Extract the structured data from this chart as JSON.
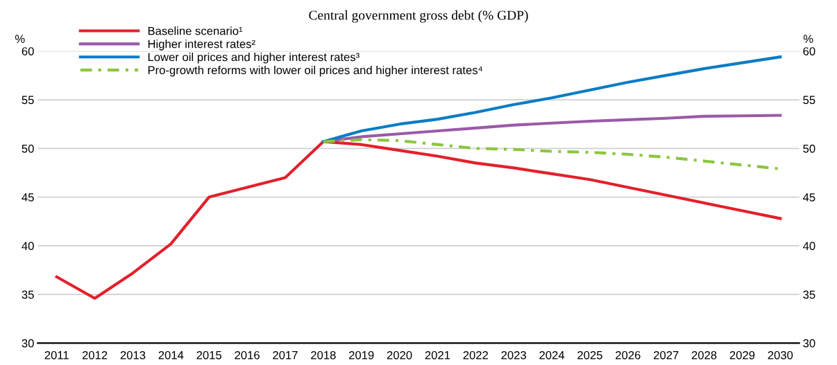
{
  "chart_data": {
    "type": "line",
    "title": "Central government gross debt (% GDP)",
    "ylabel": "%",
    "y2label": "%",
    "categories": [
      "2011",
      "2012",
      "2013",
      "2014",
      "2015",
      "2016",
      "2017",
      "2018",
      "2019",
      "2020",
      "2021",
      "2022",
      "2023",
      "2024",
      "2025",
      "2026",
      "2027",
      "2028",
      "2029",
      "2030"
    ],
    "series": [
      {
        "name": "Baseline scenario¹",
        "color": "#e3202b",
        "line_style": "solid",
        "values": [
          36.8,
          34.6,
          37.2,
          40.2,
          45.0,
          46.0,
          47.0,
          50.7,
          50.4,
          49.8,
          49.2,
          48.5,
          48.0,
          47.4,
          46.8,
          46.0,
          45.2,
          44.4,
          43.6,
          42.8
        ]
      },
      {
        "name": "Higher interest rates²",
        "color": "#9b59a8",
        "line_style": "solid",
        "values": [
          null,
          null,
          null,
          null,
          null,
          null,
          null,
          50.7,
          51.2,
          51.5,
          51.8,
          52.1,
          52.4,
          52.6,
          52.8,
          52.95,
          53.1,
          53.3,
          53.35,
          53.4
        ]
      },
      {
        "name": "Lower oil prices and higher interest rates³",
        "color": "#0b7cc4",
        "line_style": "solid",
        "values": [
          null,
          null,
          null,
          null,
          null,
          null,
          null,
          50.7,
          51.8,
          52.5,
          53.0,
          53.7,
          54.5,
          55.2,
          56.0,
          56.8,
          57.5,
          58.2,
          58.8,
          59.4
        ]
      },
      {
        "name": "Pro-growth reforms with lower oil prices and higher interest rates⁴",
        "color": "#8cc63f",
        "line_style": "dashdot",
        "values": [
          null,
          null,
          null,
          null,
          null,
          null,
          null,
          50.7,
          50.9,
          50.8,
          50.4,
          50.0,
          49.9,
          49.7,
          49.6,
          49.4,
          49.1,
          48.7,
          48.3,
          47.9
        ]
      }
    ],
    "ylim": [
      30,
      60
    ],
    "yticks": [
      30,
      35,
      40,
      45,
      50,
      55,
      60
    ],
    "y2lim": [
      30,
      60
    ],
    "y2ticks": [
      30,
      35,
      40,
      45,
      50,
      55,
      60
    ],
    "grid": "y",
    "legend": "top left",
    "marker": "none"
  }
}
